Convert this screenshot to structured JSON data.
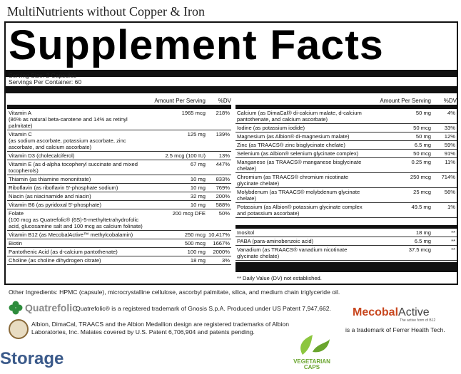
{
  "product_title": "MultiNutrients without Copper & Iron",
  "panel_title": "Supplement Facts",
  "serving_size": "Serving Size: 2 Capsules",
  "servings_per_container": "Servings Per Container: 60",
  "header_amount": "Amount Per Serving",
  "header_dv": "%DV",
  "left_rows": [
    {
      "name": "Vitamin A",
      "sub": "(86% as natural beta-carotene and 14% as retinyl palmitate)",
      "amt": "1965 mcg",
      "dv": "218%"
    },
    {
      "name": "Vitamin C",
      "sub": "(as sodium ascorbate, potassium ascorbate, zinc ascorbate, and calcium ascorbate)",
      "amt": "125 mg",
      "dv": "139%"
    },
    {
      "name": "Vitamin D3 (cholecalciferol)",
      "sub": "",
      "amt": "2.5 mcg (100 IU)",
      "dv": "13%"
    },
    {
      "name": "Vitamin E (as d-alpha tocopheryl succinate and mixed tocopherols)",
      "sub": "",
      "amt": "67 mg",
      "dv": "447%"
    },
    {
      "name": "Thiamin (as thiamine mononitrate)",
      "sub": "",
      "amt": "10 mg",
      "dv": "833%"
    },
    {
      "name": "Riboflavin (as riboflavin 5'-phosphate sodium)",
      "sub": "",
      "amt": "10 mg",
      "dv": "769%"
    },
    {
      "name": "Niacin (as niacinamide and niacin)",
      "sub": "",
      "amt": "32 mg",
      "dv": "200%"
    },
    {
      "name": "Vitamin B6 (as pyridoxal 5'-phosphate)",
      "sub": "",
      "amt": "10 mg",
      "dv": "588%"
    },
    {
      "name": "Folate",
      "sub": "(100 mcg as Quatrefolic® (6S)-5-methyltetrahydrofolic acid, glucosamine salt and 100 mcg as calcium folinate)",
      "amt": "200 mcg DFE",
      "dv": "50%"
    },
    {
      "name": "Vitamin B12 (as MecobalActive™ methylcobalamin)",
      "sub": "",
      "amt": "250 mcg",
      "dv": "10,417%"
    },
    {
      "name": "Biotin",
      "sub": "",
      "amt": "500 mcg",
      "dv": "1667%"
    },
    {
      "name": "Pantothenic Acid (as d-calcium pantothenate)",
      "sub": "",
      "amt": "100 mg",
      "dv": "2000%"
    },
    {
      "name": "Choline (as choline dihydrogen citrate)",
      "sub": "",
      "amt": "18 mg",
      "dv": "3%"
    }
  ],
  "right_rows": [
    {
      "name": "Calcium (as DimaCal® di-calcium malate, d-calcium pantothenate, and calcium ascorbate)",
      "amt": "50 mg",
      "dv": "4%"
    },
    {
      "name": "Iodine (as potassium iodide)",
      "amt": "50 mcg",
      "dv": "33%"
    },
    {
      "name": "Magnesium (as Albion® di-magnesium malate)",
      "amt": "50 mg",
      "dv": "12%"
    },
    {
      "name": "Zinc (as TRAACS® zinc bisglycinate chelate)",
      "amt": "6.5 mg",
      "dv": "59%"
    },
    {
      "name": "Selenium (as Albion® selenium glycinate complex)",
      "amt": "50 mcg",
      "dv": "91%"
    },
    {
      "name": "Manganese (as TRAACS® manganese bisglycinate chelate)",
      "amt": "0.25 mg",
      "dv": "11%"
    },
    {
      "name": "Chromium (as TRAACS® chromium nicotinate glycinate chelate)",
      "amt": "250 mcg",
      "dv": "714%"
    },
    {
      "name": "Molybdenum (as TRAACS® molybdenum glycinate chelate)",
      "amt": "25 mcg",
      "dv": "56%"
    },
    {
      "name": "Potassium (as Albion® potassium glycinate complex and potassium ascorbate)",
      "amt": "49.5 mg",
      "dv": "1%"
    }
  ],
  "right_rows2": [
    {
      "name": "Inositol",
      "amt": "18 mg",
      "dv": "**"
    },
    {
      "name": "PABA (para-aminobenzoic acid)",
      "amt": "6.5 mg",
      "dv": "**"
    },
    {
      "name": "Vanadium (as TRAACS® vanadium nicotinate glycinate chelate)",
      "amt": "37.5 mcg",
      "dv": "**"
    }
  ],
  "dv_footnote": "** Daily Value (DV) not established.",
  "other_ingredients": "Other Ingredients: HPMC (capsule), microcrystalline cellulose, ascorbyl palmitate, silica, and medium chain triglyceride oil.",
  "quatrefolic_logo": "Quatrefolic",
  "quatrefolic_note": "Quatrefolic® is a registered trademark of Gnosis S.p.A. Produced under US Patent 7,947,662.",
  "albion_note": "Albion, DimaCal, TRAACS and the Albion Medallion design are registered trademarks of Albion Laboratories, Inc. Malates covered by U.S. Patent 6,706,904 and patents pending.",
  "mecobal_brand": "Mecobal",
  "mecobal_active": "Active",
  "mecobal_tagline": "The active form of B12",
  "mecobal_note": "is a trademark of Ferrer Health Tech.",
  "veg_badge": "VEGETARIAN CAPS",
  "storage_label": "Storage",
  "colors": {
    "mecobal": "#c8471f",
    "storage": "#3b5a8a",
    "veg": "#6aa52e"
  }
}
